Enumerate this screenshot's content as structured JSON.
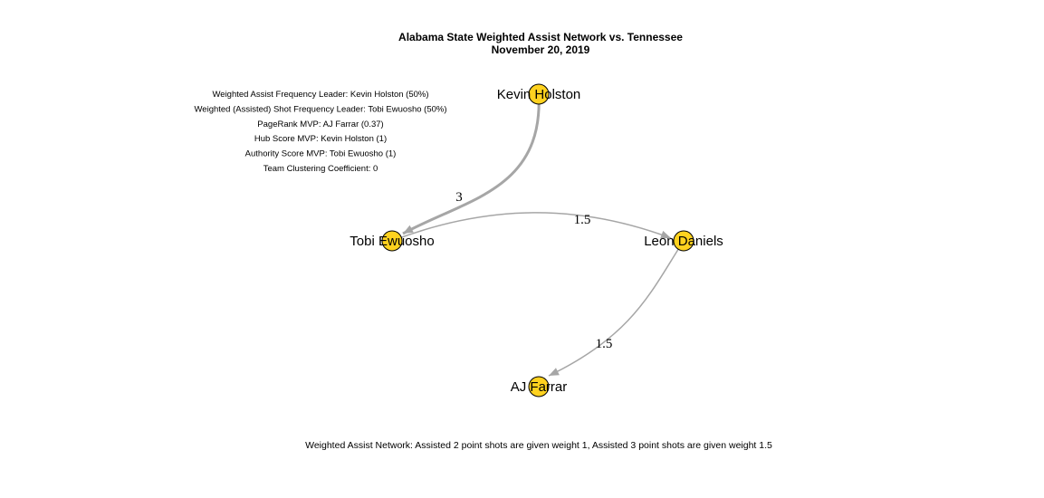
{
  "title": {
    "line1": "Alabama State Weighted Assist Network vs. Tennessee",
    "line2": "November 20, 2019"
  },
  "stats": [
    "Weighted Assist Frequency Leader: Kevin Holston (50%)",
    "Weighted (Assisted) Shot Frequency Leader: Tobi Ewuosho (50%)",
    "PageRank MVP: AJ Farrar (0.37)",
    "Hub Score MVP: Kevin Holston (1)",
    "Authority Score MVP: Tobi Ewuosho (1)",
    "Team Clustering Coefficient: 0"
  ],
  "footnote": "Weighted Assist Network: Assisted 2 point shots are given weight 1, Assisted 3 point shots are given weight 1.5",
  "colors": {
    "node": "#FFD21F",
    "edge": "#A6A6A6"
  },
  "nodes": [
    {
      "id": "kevin",
      "label": "Kevin Holston"
    },
    {
      "id": "tobi",
      "label": "Tobi Ewuosho"
    },
    {
      "id": "leon",
      "label": "Leon Daniels"
    },
    {
      "id": "aj",
      "label": "AJ Farrar"
    }
  ],
  "edges": [
    {
      "from": "kevin",
      "to": "tobi",
      "weight": 3,
      "label": "3"
    },
    {
      "from": "tobi",
      "to": "leon",
      "weight": 1.5,
      "label": "1.5"
    },
    {
      "from": "leon",
      "to": "aj",
      "weight": 1.5,
      "label": "1.5"
    }
  ]
}
